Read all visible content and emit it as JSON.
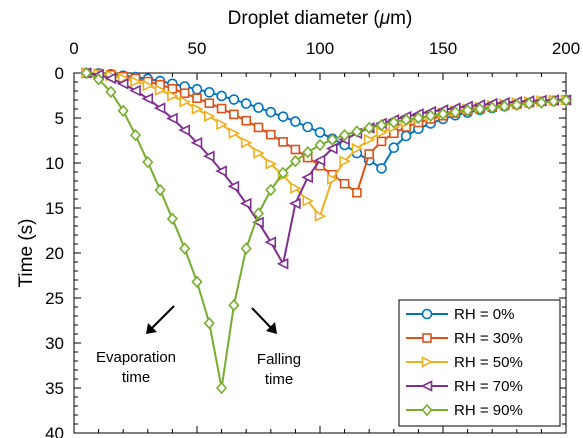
{
  "chart_data": {
    "type": "line",
    "title": "",
    "xlabel": "Droplet diameter (μm)",
    "ylabel": "Time (s)",
    "x_axis_position": "top",
    "y_axis_reversed": true,
    "xlim": [
      0,
      200
    ],
    "ylim": [
      0,
      40
    ],
    "xticks": [
      0,
      50,
      100,
      150,
      200
    ],
    "yticks": [
      0,
      5,
      10,
      15,
      20,
      25,
      30,
      35,
      40
    ],
    "grid": false,
    "legend_position": "bottom-right",
    "annotations": [
      {
        "text_lines": [
          "Evaporation",
          "time"
        ],
        "arrow": "down-left"
      },
      {
        "text_lines": [
          "Falling",
          "time"
        ],
        "arrow": "down-right"
      }
    ],
    "series": [
      {
        "name": "RH = 0%",
        "color": "#0072BD",
        "marker": "circle",
        "x": [
          5,
          10,
          15,
          20,
          25,
          30,
          35,
          40,
          45,
          50,
          55,
          60,
          65,
          70,
          75,
          80,
          85,
          90,
          95,
          100,
          105,
          110,
          115,
          120,
          125,
          130,
          135,
          140,
          145,
          150,
          155,
          160,
          165,
          170,
          175,
          180,
          185,
          190,
          195,
          200
        ],
        "y": [
          0.0,
          0.05,
          0.15,
          0.3,
          0.45,
          0.65,
          0.9,
          1.2,
          1.5,
          1.8,
          2.15,
          2.55,
          2.95,
          3.4,
          3.85,
          4.35,
          4.85,
          5.4,
          6.0,
          6.6,
          7.3,
          8.0,
          8.9,
          9.7,
          10.6,
          8.3,
          7.0,
          6.2,
          5.6,
          5.1,
          4.7,
          4.4,
          4.1,
          3.9,
          3.7,
          3.5,
          3.35,
          3.2,
          3.1,
          3.0
        ]
      },
      {
        "name": "RH = 30%",
        "color": "#D95319",
        "marker": "square",
        "x": [
          5,
          10,
          15,
          20,
          25,
          30,
          35,
          40,
          45,
          50,
          55,
          60,
          65,
          70,
          75,
          80,
          85,
          90,
          95,
          100,
          105,
          110,
          115,
          120,
          125,
          130,
          135,
          140,
          145,
          150,
          155,
          160,
          165,
          170,
          175,
          180,
          185,
          190,
          195,
          200
        ],
        "y": [
          0.0,
          0.07,
          0.2,
          0.4,
          0.6,
          0.95,
          1.3,
          1.75,
          2.25,
          2.8,
          3.35,
          3.95,
          4.6,
          5.3,
          6.05,
          6.85,
          7.65,
          8.5,
          9.4,
          10.3,
          11.3,
          12.3,
          13.3,
          9.0,
          7.6,
          6.7,
          6.0,
          5.5,
          5.1,
          4.75,
          4.45,
          4.2,
          4.0,
          3.8,
          3.6,
          3.45,
          3.3,
          3.15,
          3.05,
          3.0
        ]
      },
      {
        "name": "RH = 50%",
        "color": "#EDB120",
        "marker": "triangle-right",
        "x": [
          5,
          10,
          15,
          20,
          25,
          30,
          35,
          40,
          45,
          50,
          55,
          60,
          65,
          70,
          75,
          80,
          85,
          90,
          95,
          100,
          105,
          110,
          115,
          120,
          125,
          130,
          135,
          140,
          145,
          150,
          155,
          160,
          165,
          170,
          175,
          180,
          185,
          190,
          195,
          200
        ],
        "y": [
          0.0,
          0.1,
          0.3,
          0.6,
          0.95,
          1.4,
          1.9,
          2.55,
          3.2,
          4.0,
          4.8,
          5.7,
          6.7,
          7.75,
          8.9,
          10.1,
          11.4,
          12.8,
          14.2,
          15.9,
          11.8,
          9.8,
          8.4,
          7.4,
          6.6,
          6.0,
          5.5,
          5.1,
          4.75,
          4.45,
          4.2,
          4.0,
          3.8,
          3.6,
          3.45,
          3.3,
          3.2,
          3.1,
          3.0,
          3.0
        ]
      },
      {
        "name": "RH = 70%",
        "color": "#7E2F8E",
        "marker": "triangle-left",
        "x": [
          5,
          10,
          15,
          20,
          25,
          30,
          35,
          40,
          45,
          50,
          55,
          60,
          65,
          70,
          75,
          80,
          85,
          90,
          95,
          100,
          105,
          110,
          115,
          120,
          125,
          130,
          135,
          140,
          145,
          150,
          155,
          160,
          165,
          170,
          175,
          180,
          185,
          190,
          195,
          200
        ],
        "y": [
          0.0,
          0.2,
          0.6,
          1.2,
          1.95,
          2.85,
          3.9,
          5.05,
          6.35,
          7.75,
          9.25,
          10.9,
          12.6,
          14.5,
          16.6,
          18.8,
          21.2,
          14.5,
          11.6,
          9.7,
          8.4,
          7.4,
          6.7,
          6.1,
          5.6,
          5.2,
          4.85,
          4.55,
          4.3,
          4.1,
          3.9,
          3.7,
          3.55,
          3.4,
          3.3,
          3.2,
          3.1,
          3.05,
          3.0,
          3.0
        ]
      },
      {
        "name": "RH = 90%",
        "color": "#77AC30",
        "marker": "diamond",
        "x": [
          5,
          10,
          15,
          20,
          25,
          30,
          35,
          40,
          45,
          50,
          55,
          60,
          65,
          70,
          75,
          80,
          85,
          90,
          95,
          100,
          105,
          110,
          115,
          120,
          125,
          130,
          135,
          140,
          145,
          150,
          155,
          160,
          165,
          170,
          175,
          180,
          185,
          190,
          195,
          200
        ],
        "y": [
          0.0,
          0.7,
          2.1,
          4.2,
          6.9,
          9.9,
          13.0,
          16.2,
          19.5,
          23.2,
          27.8,
          35.0,
          25.8,
          19.5,
          15.6,
          13.0,
          11.1,
          9.8,
          8.8,
          8.0,
          7.4,
          6.9,
          6.5,
          6.1,
          5.8,
          5.5,
          5.2,
          5.0,
          4.75,
          4.55,
          4.35,
          4.15,
          4.0,
          3.85,
          3.7,
          3.55,
          3.4,
          3.3,
          3.15,
          3.05
        ]
      }
    ]
  }
}
